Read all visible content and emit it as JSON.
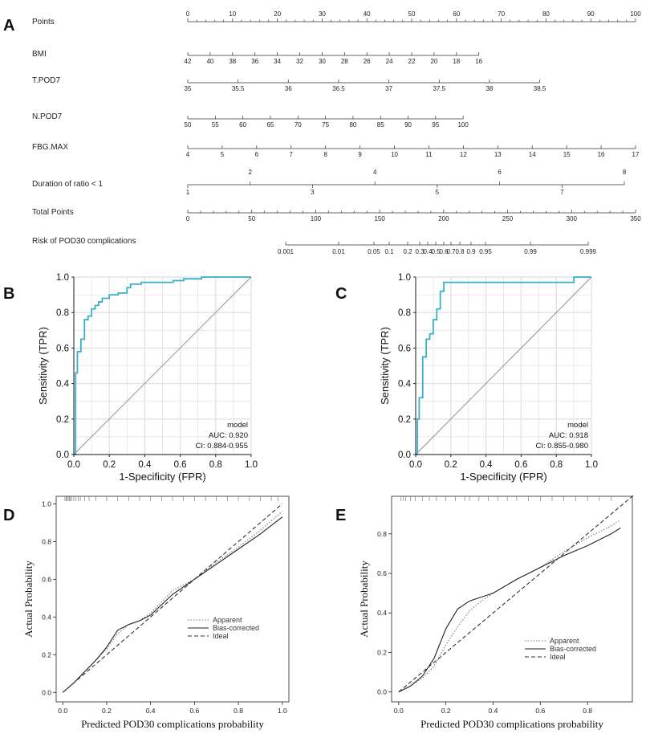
{
  "panel_labels": {
    "a": "A",
    "b": "B",
    "c": "C",
    "d": "D",
    "e": "E"
  },
  "chart_data": [
    {
      "type": "nomogram",
      "panel": "A",
      "rows": [
        {
          "label": "Points",
          "range": [
            0,
            100
          ],
          "ticks": [
            "0",
            "10",
            "20",
            "30",
            "40",
            "50",
            "60",
            "70",
            "80",
            "90",
            "100"
          ]
        },
        {
          "label": "BMI",
          "range": [
            42,
            16
          ],
          "ticks": [
            "42",
            "40",
            "38",
            "36",
            "34",
            "32",
            "30",
            "28",
            "26",
            "24",
            "22",
            "20",
            "18",
            "16"
          ]
        },
        {
          "label": "T.POD7",
          "range": [
            35,
            38.5
          ],
          "ticks": [
            "35",
            "35.5",
            "36",
            "36.5",
            "37",
            "37.5",
            "38",
            "38.5"
          ]
        },
        {
          "label": "N.POD7",
          "range": [
            50,
            100
          ],
          "ticks": [
            "50",
            "55",
            "60",
            "65",
            "70",
            "75",
            "80",
            "85",
            "90",
            "95",
            "100"
          ]
        },
        {
          "label": "FBG.MAX",
          "range": [
            4,
            17
          ],
          "ticks": [
            "4",
            "5",
            "6",
            "7",
            "8",
            "9",
            "10",
            "11",
            "12",
            "13",
            "14",
            "15",
            "16",
            "17"
          ]
        },
        {
          "label": "Duration of ratio < 1",
          "range": [
            1,
            8
          ],
          "ticks_above": [
            "2",
            "4",
            "6",
            "8"
          ],
          "ticks_below": [
            "1",
            "3",
            "5",
            "7"
          ]
        },
        {
          "label": "Total Points",
          "range": [
            0,
            350
          ],
          "ticks": [
            "0",
            "50",
            "100",
            "150",
            "200",
            "250",
            "300",
            "350"
          ]
        },
        {
          "label": "Risk of POD30 complications",
          "ticks": [
            "0.001",
            "0.01",
            "0.05",
            "0.1",
            "0.2",
            "0.3",
            "0.4",
            "0.5",
            "0.6",
            "0.7",
            "0.8",
            "0.9",
            "0.95",
            "0.99",
            "0.999"
          ]
        }
      ]
    },
    {
      "type": "line",
      "panel": "B",
      "title": "",
      "xlabel": "1-Specificity (FPR)",
      "ylabel": "Sensitivity (TPR)",
      "xlim": [
        0,
        1
      ],
      "ylim": [
        0,
        1
      ],
      "x_ticks": [
        "0.0",
        "0.2",
        "0.4",
        "0.6",
        "0.8",
        "1.0"
      ],
      "y_ticks": [
        "0.0",
        "0.2",
        "0.4",
        "0.6",
        "0.8",
        "1.0"
      ],
      "legend": [
        "model",
        "AUC: 0.920",
        "CI: 0.884-0.955"
      ],
      "series": [
        {
          "name": "model",
          "color": "#3ab0c8",
          "x": [
            0,
            0.01,
            0.01,
            0.02,
            0.02,
            0.04,
            0.04,
            0.06,
            0.06,
            0.08,
            0.08,
            0.1,
            0.1,
            0.12,
            0.12,
            0.14,
            0.14,
            0.16,
            0.16,
            0.2,
            0.2,
            0.25,
            0.25,
            0.3,
            0.3,
            0.32,
            0.32,
            0.38,
            0.38,
            0.42,
            0.42,
            0.56,
            0.56,
            0.62,
            0.62,
            0.72,
            0.72,
            1.0
          ],
          "y": [
            0,
            0,
            0.46,
            0.46,
            0.58,
            0.58,
            0.65,
            0.65,
            0.76,
            0.76,
            0.78,
            0.78,
            0.82,
            0.82,
            0.84,
            0.84,
            0.86,
            0.86,
            0.88,
            0.88,
            0.9,
            0.9,
            0.91,
            0.91,
            0.94,
            0.94,
            0.96,
            0.96,
            0.97,
            0.97,
            0.97,
            0.97,
            0.98,
            0.98,
            0.99,
            0.99,
            1.0,
            1.0
          ]
        },
        {
          "name": "reference",
          "color": "#888888",
          "x": [
            0,
            1
          ],
          "y": [
            0,
            1
          ]
        }
      ]
    },
    {
      "type": "line",
      "panel": "C",
      "title": "",
      "xlabel": "1-Specificity (FPR)",
      "ylabel": "Sensitivity (TPR)",
      "xlim": [
        0,
        1
      ],
      "ylim": [
        0,
        1
      ],
      "x_ticks": [
        "0.0",
        "0.2",
        "0.4",
        "0.6",
        "0.8",
        "1.0"
      ],
      "y_ticks": [
        "0.0",
        "0.2",
        "0.4",
        "0.6",
        "0.8",
        "1.0"
      ],
      "legend": [
        "model",
        "AUC: 0.918",
        "CI: 0.855-0.980"
      ],
      "series": [
        {
          "name": "model",
          "color": "#3ab0c8",
          "x": [
            0,
            0.01,
            0.01,
            0.02,
            0.02,
            0.04,
            0.04,
            0.06,
            0.06,
            0.08,
            0.08,
            0.1,
            0.1,
            0.12,
            0.12,
            0.14,
            0.14,
            0.16,
            0.16,
            0.9,
            0.9,
            1.0
          ],
          "y": [
            0,
            0,
            0.2,
            0.2,
            0.32,
            0.32,
            0.55,
            0.55,
            0.65,
            0.65,
            0.68,
            0.68,
            0.76,
            0.76,
            0.82,
            0.82,
            0.92,
            0.92,
            0.97,
            0.97,
            1.0,
            1.0
          ]
        },
        {
          "name": "reference",
          "color": "#888888",
          "x": [
            0,
            1
          ],
          "y": [
            0,
            1
          ]
        }
      ]
    },
    {
      "type": "line",
      "panel": "D",
      "title": "",
      "xlabel": "Predicted POD30 complications probability",
      "ylabel": "Actual Probability",
      "xlim": [
        0,
        1
      ],
      "ylim": [
        0,
        1
      ],
      "x_ticks": [
        "0.0",
        "0.2",
        "0.4",
        "0.6",
        "0.8",
        "1.0"
      ],
      "y_ticks": [
        "0.0",
        "0.2",
        "0.4",
        "0.6",
        "0.8",
        "1.0"
      ],
      "legend": [
        "Apparent",
        "Bias-corrected",
        "Ideal"
      ],
      "rug_x": [
        0.01,
        0.015,
        0.02,
        0.025,
        0.03,
        0.035,
        0.04,
        0.05,
        0.06,
        0.07,
        0.08,
        0.1,
        0.12,
        0.15,
        0.2,
        0.25,
        0.3,
        0.35,
        0.4,
        0.45,
        0.5,
        0.55,
        0.6,
        0.65,
        0.7,
        0.75,
        0.8,
        0.85,
        0.9,
        0.95,
        0.98
      ],
      "series": [
        {
          "name": "Apparent",
          "style": "dotted",
          "x": [
            0,
            0.05,
            0.1,
            0.15,
            0.2,
            0.25,
            0.3,
            0.35,
            0.4,
            0.5,
            0.6,
            0.7,
            0.8,
            0.9,
            1.0
          ],
          "y": [
            0.0,
            0.05,
            0.11,
            0.17,
            0.23,
            0.31,
            0.36,
            0.38,
            0.42,
            0.54,
            0.6,
            0.69,
            0.77,
            0.86,
            0.96
          ]
        },
        {
          "name": "Bias-corrected",
          "style": "solid",
          "x": [
            0,
            0.05,
            0.1,
            0.15,
            0.2,
            0.25,
            0.3,
            0.35,
            0.4,
            0.5,
            0.6,
            0.7,
            0.8,
            0.9,
            1.0
          ],
          "y": [
            0.0,
            0.05,
            0.11,
            0.17,
            0.24,
            0.33,
            0.36,
            0.38,
            0.41,
            0.52,
            0.6,
            0.68,
            0.76,
            0.84,
            0.93
          ]
        },
        {
          "name": "Ideal",
          "style": "dashed",
          "x": [
            0,
            1
          ],
          "y": [
            0,
            1
          ]
        }
      ]
    },
    {
      "type": "line",
      "panel": "E",
      "title": "",
      "xlabel": "Predicted POD30 complications probability",
      "ylabel": "Actual Probability",
      "xlim": [
        0,
        1
      ],
      "ylim": [
        0,
        1
      ],
      "x_ticks": [
        "0.0",
        "0.2",
        "0.4",
        "0.6",
        "0.8"
      ],
      "y_ticks": [
        "0.0",
        "0.2",
        "0.4",
        "0.6",
        "0.8"
      ],
      "legend": [
        "Apparent",
        "Bias-corrected",
        "Ideal"
      ],
      "rug_x": [
        0.01,
        0.02,
        0.03,
        0.05,
        0.07,
        0.1,
        0.13,
        0.16,
        0.2,
        0.24,
        0.28,
        0.3,
        0.34,
        0.38,
        0.42,
        0.46,
        0.5,
        0.55,
        0.6,
        0.65,
        0.7,
        0.75,
        0.8,
        0.85,
        0.9
      ],
      "series": [
        {
          "name": "Apparent",
          "style": "dotted",
          "x": [
            0,
            0.05,
            0.1,
            0.15,
            0.2,
            0.25,
            0.3,
            0.35,
            0.4,
            0.5,
            0.6,
            0.7,
            0.8,
            0.9,
            0.94
          ],
          "y": [
            0.0,
            0.03,
            0.07,
            0.13,
            0.24,
            0.33,
            0.41,
            0.46,
            0.5,
            0.57,
            0.63,
            0.71,
            0.78,
            0.84,
            0.87
          ]
        },
        {
          "name": "Bias-corrected",
          "style": "solid",
          "x": [
            0,
            0.05,
            0.1,
            0.15,
            0.2,
            0.25,
            0.3,
            0.35,
            0.4,
            0.5,
            0.6,
            0.7,
            0.8,
            0.9,
            0.94
          ],
          "y": [
            0.0,
            0.03,
            0.08,
            0.17,
            0.32,
            0.42,
            0.46,
            0.48,
            0.5,
            0.57,
            0.63,
            0.69,
            0.74,
            0.8,
            0.83
          ]
        },
        {
          "name": "Ideal",
          "style": "dashed",
          "x": [
            0,
            1
          ],
          "y": [
            0,
            1
          ]
        }
      ]
    }
  ]
}
